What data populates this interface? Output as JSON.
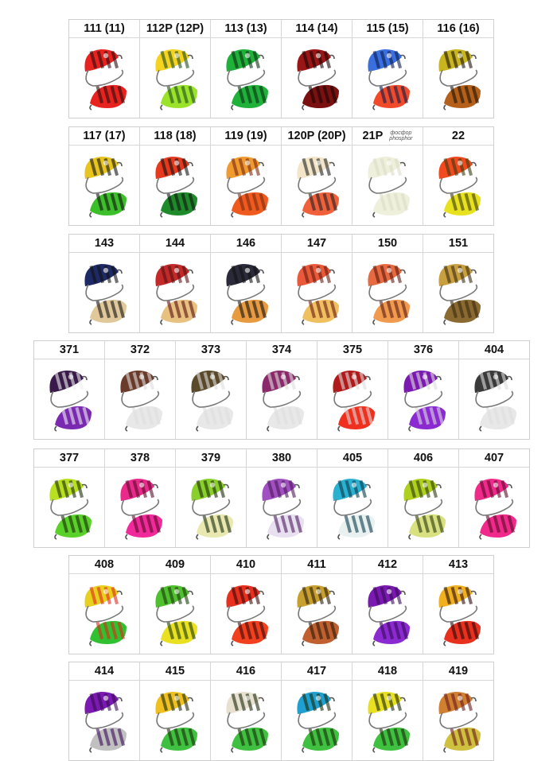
{
  "rows": [
    {
      "items": [
        {
          "label": "111 (11)",
          "colors": [
            "#e8231f",
            "#e8231f",
            "#2a0d0d"
          ]
        },
        {
          "label": "112P (12P)",
          "colors": [
            "#f5d320",
            "#9be22a",
            "#1e4d1e"
          ]
        },
        {
          "label": "113 (13)",
          "colors": [
            "#1fb13a",
            "#1fb13a",
            "#0b2e12"
          ]
        },
        {
          "label": "114 (14)",
          "colors": [
            "#9a1616",
            "#7a1010",
            "#1a0505"
          ]
        },
        {
          "label": "115 (15)",
          "colors": [
            "#3a6fe0",
            "#f04a2a",
            "#0c1c4c"
          ]
        },
        {
          "label": "116 (16)",
          "colors": [
            "#c9b51e",
            "#b5601a",
            "#1c1206"
          ]
        }
      ]
    },
    {
      "items": [
        {
          "label": "117 (17)",
          "colors": [
            "#e7c41f",
            "#3cbf2a",
            "#111"
          ]
        },
        {
          "label": "118 (18)",
          "colors": [
            "#e53a1e",
            "#1e8a2a",
            "#111"
          ]
        },
        {
          "label": "119 (19)",
          "colors": [
            "#f09a30",
            "#ef5a1f",
            "#7a2a10"
          ]
        },
        {
          "label": "120P (20P)",
          "colors": [
            "#f2e5c8",
            "#f0603a",
            "#222"
          ]
        },
        {
          "label": "21P",
          "note": [
            "фосфор",
            "phosphor"
          ],
          "colors": [
            "#eef0dc",
            "#eef0dc",
            "#dcdcc8"
          ]
        },
        {
          "label": "22",
          "colors": [
            "#f04a1e",
            "#e8e21e",
            "#3a3a10"
          ]
        }
      ]
    },
    {
      "items": [
        {
          "label": "143",
          "colors": [
            "#1e2a66",
            "#e0c89a",
            "#111"
          ]
        },
        {
          "label": "144",
          "colors": [
            "#c22a2a",
            "#e8c080",
            "#5a1010"
          ]
        },
        {
          "label": "146",
          "colors": [
            "#2a2a3a",
            "#e89a40",
            "#111"
          ]
        },
        {
          "label": "147",
          "colors": [
            "#e85a3a",
            "#f0c060",
            "#6a1a10"
          ]
        },
        {
          "label": "150",
          "colors": [
            "#e86a40",
            "#f09a50",
            "#5a1a10"
          ]
        },
        {
          "label": "151",
          "colors": [
            "#c8a040",
            "#8a6a30",
            "#3a2a10"
          ]
        }
      ]
    },
    {
      "items": [
        {
          "label": "371",
          "colors": [
            "#3a1a4a",
            "#7a2ab0",
            "#eee"
          ]
        },
        {
          "label": "372",
          "colors": [
            "#6a3a2a",
            "#e8e8e8",
            "#ddd"
          ]
        },
        {
          "label": "373",
          "colors": [
            "#5a4a2a",
            "#e8e8e8",
            "#ddd"
          ]
        },
        {
          "label": "374",
          "colors": [
            "#8a2a6a",
            "#e8e8e8",
            "#ddd"
          ]
        },
        {
          "label": "375",
          "colors": [
            "#b01a1a",
            "#f0301e",
            "#ddd"
          ]
        },
        {
          "label": "376",
          "colors": [
            "#7a1ab0",
            "#8a2ad0",
            "#ddd"
          ]
        },
        {
          "label": "404",
          "colors": [
            "#3a3a3a",
            "#e8e8e8",
            "#ddd"
          ]
        }
      ]
    },
    {
      "items": [
        {
          "label": "377",
          "colors": [
            "#b8e020",
            "#5ad02a",
            "#1a2a0a"
          ]
        },
        {
          "label": "378",
          "colors": [
            "#e82a8a",
            "#f02a9a",
            "#5a0a2a"
          ]
        },
        {
          "label": "379",
          "colors": [
            "#8ad02a",
            "#e8e8b0",
            "#1a2a0a"
          ]
        },
        {
          "label": "380",
          "colors": [
            "#a050c0",
            "#e8e0f0",
            "#4a1a5a"
          ]
        },
        {
          "label": "405",
          "colors": [
            "#2ab0d0",
            "#e8f0f0",
            "#0a3a4a"
          ]
        },
        {
          "label": "406",
          "colors": [
            "#b0d020",
            "#d8e080",
            "#2a3a0a"
          ]
        },
        {
          "label": "407",
          "colors": [
            "#f02a8a",
            "#f02a8a",
            "#5a0a2a"
          ]
        }
      ]
    },
    {
      "items": [
        {
          "label": "408",
          "colors": [
            "#e8d020",
            "#30c030",
            "#e02a1a"
          ]
        },
        {
          "label": "409",
          "colors": [
            "#50c030",
            "#e8e020",
            "#1a3a0a"
          ]
        },
        {
          "label": "410",
          "colors": [
            "#e8301e",
            "#f0401e",
            "#3a0a0a"
          ]
        },
        {
          "label": "411",
          "colors": [
            "#c8a030",
            "#c06030",
            "#2a1a0a"
          ]
        },
        {
          "label": "412",
          "colors": [
            "#7a1ab0",
            "#8a2ad0",
            "#3a0a5a"
          ]
        },
        {
          "label": "413",
          "colors": [
            "#f0b020",
            "#e8301e",
            "#2a0a0a"
          ]
        }
      ]
    },
    {
      "items": [
        {
          "label": "414",
          "colors": [
            "#7a1ab0",
            "#c0c0c0",
            "#3a0a5a"
          ]
        },
        {
          "label": "415",
          "colors": [
            "#f0c020",
            "#40c040",
            "#1a2a0a"
          ]
        },
        {
          "label": "416",
          "colors": [
            "#e8e0d0",
            "#40c040",
            "#1a2a0a"
          ]
        },
        {
          "label": "417",
          "colors": [
            "#20a0d0",
            "#40c040",
            "#1a2a0a"
          ]
        },
        {
          "label": "418",
          "colors": [
            "#e8e020",
            "#40c040",
            "#1a2a0a"
          ]
        },
        {
          "label": "419",
          "colors": [
            "#d08030",
            "#d0c040",
            "#6a1a1a"
          ]
        }
      ]
    }
  ]
}
